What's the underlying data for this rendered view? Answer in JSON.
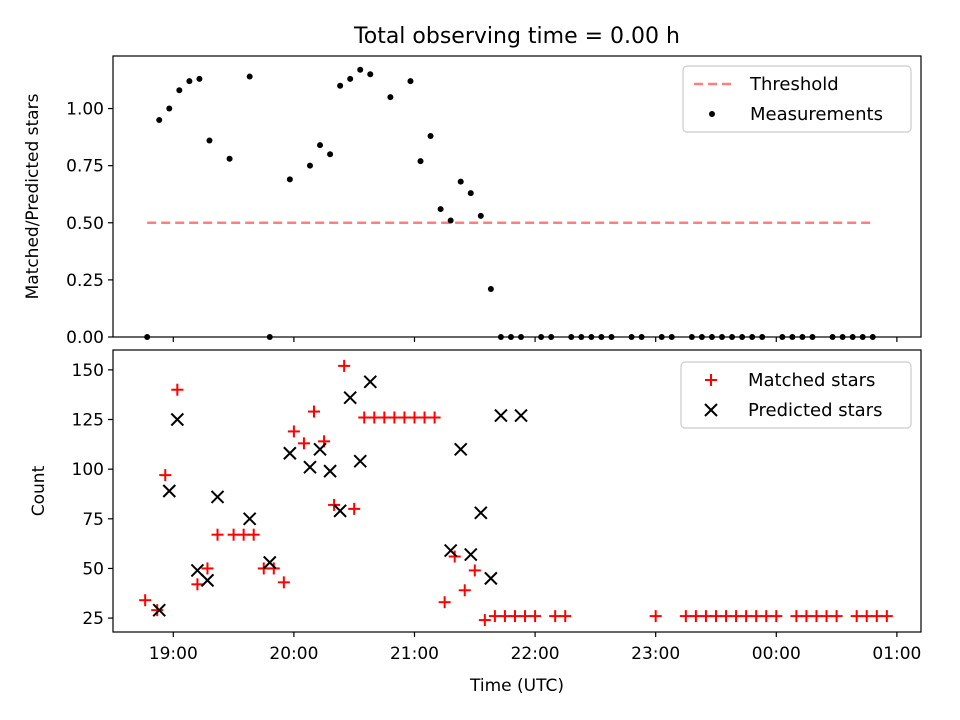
{
  "title": "Total observing time = 0.00 h",
  "chart_data": [
    {
      "type": "scatter",
      "ylabel": "Matched/Predicted stars",
      "ylim": [
        0,
        1.23
      ],
      "yticks": [
        "0.00",
        "0.25",
        "0.50",
        "0.75",
        "1.00"
      ],
      "yticks_values": [
        0,
        0.25,
        0.5,
        0.75,
        1.0
      ],
      "legend_position": "upper right",
      "legend": [
        "Threshold",
        "Measurements"
      ],
      "threshold": {
        "name": "Threshold",
        "value": 0.5,
        "x_range": [
          "18:47",
          "24:48"
        ],
        "color": "#ff7f7f"
      },
      "series": [
        {
          "name": "Measurements",
          "color": "#000000",
          "x": [
            "18:47",
            "18:53",
            "18:58",
            "19:03",
            "19:08",
            "19:13",
            "19:18",
            "19:28",
            "19:38",
            "19:48",
            "19:58",
            "20:08",
            "20:13",
            "20:18",
            "20:23",
            "20:28",
            "20:33",
            "20:38",
            "20:48",
            "20:58",
            "21:03",
            "21:08",
            "21:13",
            "21:18",
            "21:23",
            "21:28",
            "21:33",
            "21:38",
            "21:43",
            "21:48",
            "21:53",
            "22:03",
            "22:08",
            "22:18",
            "22:23",
            "22:28",
            "22:33",
            "22:38",
            "22:48",
            "22:53",
            "23:03",
            "23:08",
            "23:18",
            "23:23",
            "23:28",
            "23:33",
            "23:38",
            "23:43",
            "23:48",
            "23:53",
            "24:03",
            "24:08",
            "24:13",
            "24:18",
            "24:28",
            "24:33",
            "24:38",
            "24:43",
            "24:48"
          ],
          "y": [
            0,
            0.95,
            1.0,
            1.08,
            1.12,
            1.13,
            0.86,
            0.78,
            1.14,
            0,
            0.69,
            0.75,
            0.84,
            0.8,
            1.1,
            1.13,
            1.17,
            1.15,
            1.05,
            1.12,
            0.77,
            0.88,
            0.56,
            0.51,
            0.68,
            0.63,
            0.53,
            0.21,
            0,
            0,
            0,
            0,
            0,
            0,
            0,
            0,
            0,
            0,
            0,
            0,
            0,
            0,
            0,
            0,
            0,
            0,
            0,
            0,
            0,
            0,
            0,
            0,
            0,
            0,
            0,
            0,
            0,
            0,
            0
          ]
        }
      ]
    },
    {
      "type": "scatter",
      "xlabel": "Time (UTC)",
      "ylabel": "Count",
      "ylim": [
        18,
        160
      ],
      "yticks": [
        "25",
        "50",
        "75",
        "100",
        "125",
        "150"
      ],
      "yticks_values": [
        25,
        50,
        75,
        100,
        125,
        150
      ],
      "xticks": [
        "19:00",
        "20:00",
        "21:00",
        "22:00",
        "23:00",
        "00:00",
        "01:00"
      ],
      "xticks_values": [
        "19:00",
        "20:00",
        "21:00",
        "22:00",
        "23:00",
        "24:00",
        "25:00"
      ],
      "xlim": [
        "18:30",
        "25:12"
      ],
      "legend_position": "upper right",
      "legend": [
        "Matched stars",
        "Predicted stars"
      ],
      "series": [
        {
          "name": "Matched stars",
          "marker": "+",
          "color": "#ff0000",
          "x": [
            "18:46",
            "18:52",
            "18:56",
            "19:02",
            "19:12",
            "19:17",
            "19:22",
            "19:30",
            "19:35",
            "19:40",
            "19:45",
            "19:50",
            "19:55",
            "20:00",
            "20:05",
            "20:10",
            "20:15",
            "20:20",
            "20:25",
            "20:30",
            "20:35",
            "20:40",
            "20:45",
            "20:50",
            "20:55",
            "21:00",
            "21:05",
            "21:10",
            "21:15",
            "21:20",
            "21:25",
            "21:30",
            "21:35",
            "21:40",
            "21:45",
            "21:50",
            "21:55",
            "22:00",
            "22:10",
            "22:15",
            "23:00",
            "23:15",
            "23:20",
            "23:25",
            "23:30",
            "23:35",
            "23:40",
            "23:45",
            "23:50",
            "23:55",
            "24:00",
            "24:10",
            "24:15",
            "24:20",
            "24:25",
            "24:30",
            "24:40",
            "24:45",
            "24:50",
            "24:55"
          ],
          "y": [
            34,
            29,
            97,
            140,
            42,
            50,
            67,
            67,
            67,
            67,
            50,
            50,
            43,
            119,
            113,
            129,
            114,
            82,
            152,
            80,
            126,
            126,
            126,
            126,
            126,
            126,
            126,
            126,
            33,
            56,
            39,
            49,
            24,
            26,
            26,
            26,
            26,
            26,
            26,
            26,
            26,
            26,
            26,
            26,
            26,
            26,
            26,
            26,
            26,
            26,
            26,
            26,
            26,
            26,
            26,
            26,
            26,
            26,
            26,
            26
          ]
        },
        {
          "name": "Predicted stars",
          "marker": "x",
          "color": "#000000",
          "x": [
            "18:53",
            "18:58",
            "19:02",
            "19:12",
            "19:17",
            "19:22",
            "19:38",
            "19:48",
            "19:58",
            "20:08",
            "20:13",
            "20:18",
            "20:23",
            "20:28",
            "20:33",
            "20:38",
            "21:18",
            "21:23",
            "21:28",
            "21:33",
            "21:38",
            "21:43",
            "21:53"
          ],
          "y": [
            29,
            89,
            125,
            49,
            44,
            86,
            75,
            53,
            108,
            101,
            110,
            99,
            79,
            136,
            104,
            144,
            59,
            110,
            57,
            78,
            45,
            127,
            127
          ]
        }
      ]
    }
  ]
}
